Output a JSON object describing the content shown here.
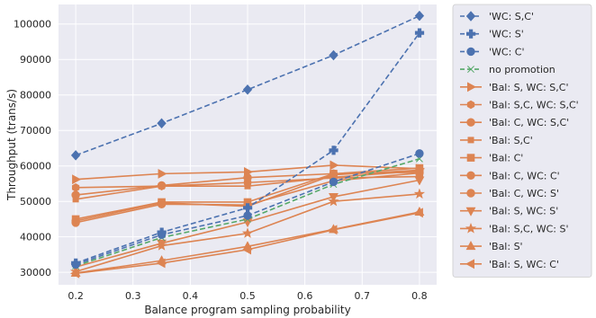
{
  "chart_data": {
    "type": "line",
    "title": "",
    "xlabel": "Balance program sampling probability",
    "ylabel": "Throughput (trans/s)",
    "xlim": [
      0.17,
      0.83
    ],
    "ylim": [
      26500,
      105500
    ],
    "xticks": [
      0.2,
      0.3,
      0.4,
      0.5,
      0.6,
      0.7,
      0.8
    ],
    "xtick_labels": [
      "0.2",
      "0.3",
      "0.4",
      "0.5",
      "0.6",
      "0.7",
      "0.8"
    ],
    "yticks": [
      30000,
      40000,
      50000,
      60000,
      70000,
      80000,
      90000,
      100000
    ],
    "ytick_labels": [
      "30000",
      "40000",
      "50000",
      "60000",
      "70000",
      "80000",
      "90000",
      "100000"
    ],
    "grid": true,
    "legend_position": "outside-right",
    "plot_background": "#eaeaf2",
    "grid_color": "#ffffff",
    "x": [
      0.2,
      0.35,
      0.5,
      0.65,
      0.8
    ],
    "series": [
      {
        "name": "'WC: S,C'",
        "color": "#4c72b0",
        "dash": true,
        "marker": "diamond",
        "values": [
          63000,
          72000,
          81500,
          91200,
          102300
        ]
      },
      {
        "name": "'WC: S'",
        "color": "#4c72b0",
        "dash": true,
        "marker": "plus",
        "values": [
          32600,
          41300,
          48200,
          64400,
          97500
        ]
      },
      {
        "name": "'WC: C'",
        "color": "#4c72b0",
        "dash": true,
        "marker": "circle",
        "values": [
          32200,
          40600,
          46000,
          55500,
          63500
        ]
      },
      {
        "name": "no promotion",
        "color": "#55a868",
        "dash": true,
        "marker": "x",
        "values": [
          31800,
          39800,
          45000,
          54800,
          62000
        ]
      },
      {
        "name": "'Bal: S, WC: S,C'",
        "color": "#dd8452",
        "dash": false,
        "marker": "triangle-right",
        "values": [
          56200,
          57800,
          58300,
          60200,
          59200
        ]
      },
      {
        "name": "'Bal: S,C, WC: S,C'",
        "color": "#dd8452",
        "dash": false,
        "marker": "hexagon",
        "values": [
          53900,
          54300,
          55300,
          56600,
          57000
        ]
      },
      {
        "name": "'Bal: C, WC: S,C'",
        "color": "#dd8452",
        "dash": false,
        "marker": "circle",
        "values": [
          51800,
          54500,
          56700,
          57800,
          58200
        ]
      },
      {
        "name": "'Bal: S,C'",
        "color": "#dd8452",
        "dash": false,
        "marker": "square-small",
        "values": [
          50600,
          54300,
          54300,
          56800,
          58600
        ]
      },
      {
        "name": "'Bal: C'",
        "color": "#dd8452",
        "dash": false,
        "marker": "square",
        "values": [
          45000,
          49800,
          49800,
          57800,
          59400
        ]
      },
      {
        "name": "'Bal: C, WC: C'",
        "color": "#dd8452",
        "dash": false,
        "marker": "circle",
        "values": [
          44500,
          49600,
          48600,
          57500,
          58800
        ]
      },
      {
        "name": "'Bal: C, WC: S'",
        "color": "#dd8452",
        "dash": false,
        "marker": "circle",
        "values": [
          44000,
          49200,
          49000,
          55800,
          58000
        ]
      },
      {
        "name": "'Bal: S, WC: S'",
        "color": "#dd8452",
        "dash": false,
        "marker": "triangle-down",
        "values": [
          31500,
          38200,
          44200,
          51300,
          56000
        ]
      },
      {
        "name": "'Bal: S,C, WC: S'",
        "color": "#dd8452",
        "dash": false,
        "marker": "star",
        "values": [
          30200,
          37500,
          41000,
          50000,
          52100
        ]
      },
      {
        "name": "'Bal: S'",
        "color": "#dd8452",
        "dash": false,
        "marker": "triangle-up",
        "values": [
          29800,
          33300,
          37300,
          42100,
          47000
        ]
      },
      {
        "name": "'Bal: S, WC: C'",
        "color": "#dd8452",
        "dash": false,
        "marker": "triangle-left",
        "values": [
          29700,
          32600,
          36400,
          42000,
          46800
        ]
      }
    ]
  }
}
